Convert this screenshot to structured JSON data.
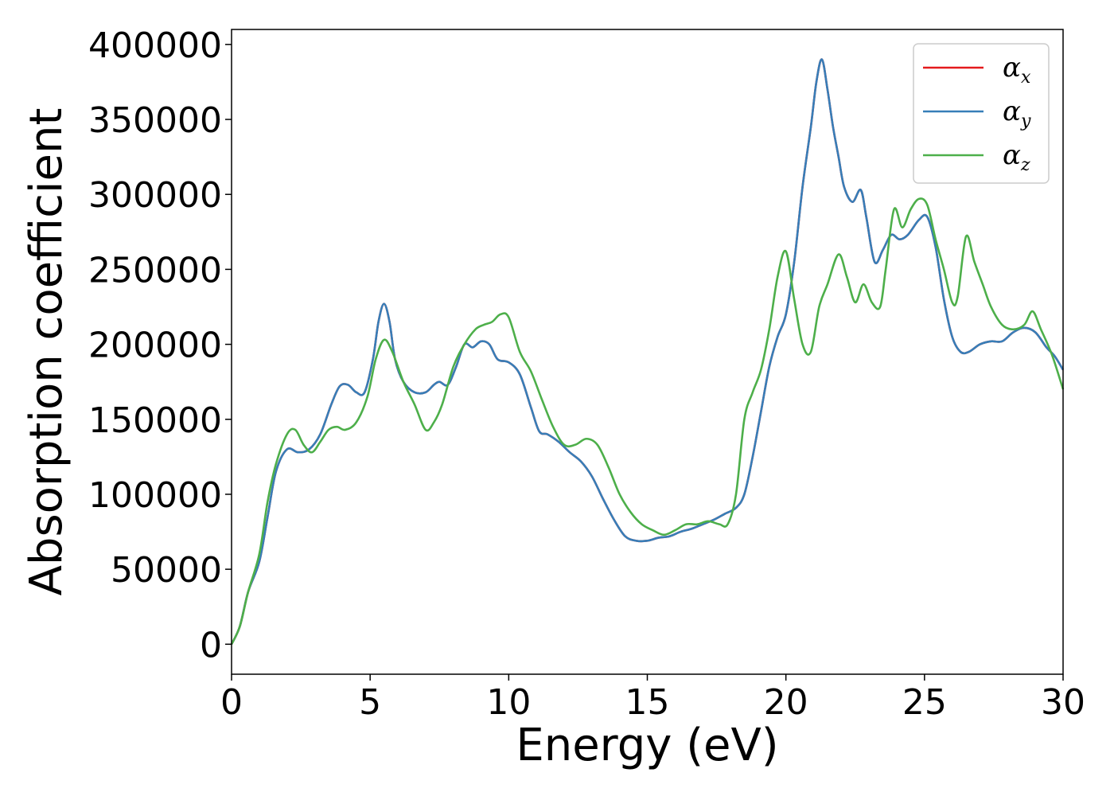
{
  "chart_data": {
    "type": "line",
    "title": "",
    "xlabel": "Energy (eV)",
    "ylabel": "Absorption coefficient",
    "xlim": [
      0,
      30
    ],
    "ylim": [
      -20000,
      410000
    ],
    "xticks": [
      0,
      5,
      10,
      15,
      20,
      25,
      30
    ],
    "yticks": [
      0,
      50000,
      100000,
      150000,
      200000,
      250000,
      300000,
      350000,
      400000
    ],
    "grid": false,
    "legend_position": "top-right",
    "series": [
      {
        "name": "α_x",
        "label_main": "α",
        "label_sub": "x",
        "color": "#e41a1c",
        "x": [
          0,
          0.3,
          0.6,
          1.0,
          1.3,
          1.6,
          2.0,
          2.4,
          2.8,
          3.2,
          3.6,
          3.9,
          4.2,
          4.5,
          4.8,
          5.1,
          5.3,
          5.5,
          5.7,
          5.9,
          6.2,
          6.6,
          7.0,
          7.3,
          7.5,
          7.8,
          8.1,
          8.4,
          8.7,
          9.0,
          9.3,
          9.6,
          10.0,
          10.4,
          10.8,
          11.1,
          11.4,
          11.8,
          12.2,
          12.6,
          13.0,
          13.4,
          13.8,
          14.2,
          14.6,
          15.0,
          15.4,
          15.8,
          16.2,
          16.6,
          17.0,
          17.4,
          17.8,
          18.2,
          18.5,
          18.8,
          19.1,
          19.4,
          19.7,
          20.0,
          20.3,
          20.6,
          20.9,
          21.1,
          21.3,
          21.5,
          21.7,
          21.9,
          22.1,
          22.4,
          22.7,
          22.9,
          23.2,
          23.5,
          23.8,
          24.1,
          24.4,
          24.8,
          25.1,
          25.4,
          25.7,
          26.0,
          26.3,
          26.6,
          27.0,
          27.4,
          27.8,
          28.2,
          28.6,
          29.0,
          29.4,
          29.7,
          30.0
        ],
        "values": [
          0,
          12000,
          35000,
          55000,
          85000,
          115000,
          130000,
          128000,
          130000,
          140000,
          160000,
          172000,
          173000,
          168000,
          168000,
          190000,
          215000,
          227000,
          215000,
          190000,
          175000,
          168000,
          168000,
          173000,
          175000,
          173000,
          185000,
          200000,
          198000,
          202000,
          200000,
          190000,
          188000,
          180000,
          158000,
          142000,
          140000,
          135000,
          128000,
          122000,
          112000,
          97000,
          83000,
          72000,
          69000,
          69000,
          71000,
          72000,
          75000,
          77000,
          80000,
          83000,
          87000,
          91000,
          100000,
          125000,
          155000,
          185000,
          205000,
          220000,
          255000,
          305000,
          345000,
          375000,
          390000,
          370000,
          345000,
          325000,
          305000,
          295000,
          303000,
          285000,
          255000,
          263000,
          273000,
          270000,
          273000,
          283000,
          285000,
          265000,
          230000,
          205000,
          195000,
          195000,
          200000,
          202000,
          202000,
          208000,
          211000,
          208000,
          198000,
          192000,
          183000
        ]
      },
      {
        "name": "α_y",
        "label_main": "α",
        "label_sub": "y",
        "color": "#377eb8",
        "x": [
          0,
          0.3,
          0.6,
          1.0,
          1.3,
          1.6,
          2.0,
          2.4,
          2.8,
          3.2,
          3.6,
          3.9,
          4.2,
          4.5,
          4.8,
          5.1,
          5.3,
          5.5,
          5.7,
          5.9,
          6.2,
          6.6,
          7.0,
          7.3,
          7.5,
          7.8,
          8.1,
          8.4,
          8.7,
          9.0,
          9.3,
          9.6,
          10.0,
          10.4,
          10.8,
          11.1,
          11.4,
          11.8,
          12.2,
          12.6,
          13.0,
          13.4,
          13.8,
          14.2,
          14.6,
          15.0,
          15.4,
          15.8,
          16.2,
          16.6,
          17.0,
          17.4,
          17.8,
          18.2,
          18.5,
          18.8,
          19.1,
          19.4,
          19.7,
          20.0,
          20.3,
          20.6,
          20.9,
          21.1,
          21.3,
          21.5,
          21.7,
          21.9,
          22.1,
          22.4,
          22.7,
          22.9,
          23.2,
          23.5,
          23.8,
          24.1,
          24.4,
          24.8,
          25.1,
          25.4,
          25.7,
          26.0,
          26.3,
          26.6,
          27.0,
          27.4,
          27.8,
          28.2,
          28.6,
          29.0,
          29.4,
          29.7,
          30.0
        ],
        "values": [
          0,
          12000,
          35000,
          55000,
          85000,
          115000,
          130000,
          128000,
          130000,
          140000,
          160000,
          172000,
          173000,
          168000,
          168000,
          190000,
          215000,
          227000,
          215000,
          190000,
          175000,
          168000,
          168000,
          173000,
          175000,
          173000,
          185000,
          200000,
          198000,
          202000,
          200000,
          190000,
          188000,
          180000,
          158000,
          142000,
          140000,
          135000,
          128000,
          122000,
          112000,
          97000,
          83000,
          72000,
          69000,
          69000,
          71000,
          72000,
          75000,
          77000,
          80000,
          83000,
          87000,
          91000,
          100000,
          125000,
          155000,
          185000,
          205000,
          220000,
          255000,
          305000,
          345000,
          375000,
          390000,
          370000,
          345000,
          325000,
          305000,
          295000,
          303000,
          285000,
          255000,
          263000,
          273000,
          270000,
          273000,
          283000,
          285000,
          265000,
          230000,
          205000,
          195000,
          195000,
          200000,
          202000,
          202000,
          208000,
          211000,
          208000,
          198000,
          192000,
          183000
        ]
      },
      {
        "name": "α_z",
        "label_main": "α",
        "label_sub": "z",
        "color": "#4daf4a",
        "x": [
          0,
          0.3,
          0.6,
          1.0,
          1.3,
          1.6,
          2.0,
          2.3,
          2.6,
          2.9,
          3.2,
          3.5,
          3.8,
          4.1,
          4.5,
          4.9,
          5.2,
          5.5,
          5.8,
          6.2,
          6.6,
          7.0,
          7.3,
          7.6,
          8.0,
          8.4,
          8.8,
          9.1,
          9.4,
          9.7,
          10.0,
          10.4,
          10.8,
          11.2,
          11.6,
          12.0,
          12.4,
          12.8,
          13.2,
          13.6,
          14.0,
          14.4,
          14.8,
          15.2,
          15.6,
          16.0,
          16.4,
          16.8,
          17.2,
          17.6,
          17.9,
          18.2,
          18.5,
          18.8,
          19.1,
          19.4,
          19.7,
          20.0,
          20.3,
          20.6,
          20.9,
          21.2,
          21.5,
          21.9,
          22.2,
          22.5,
          22.8,
          23.1,
          23.4,
          23.6,
          23.9,
          24.2,
          24.5,
          24.8,
          25.1,
          25.4,
          25.7,
          26.0,
          26.2,
          26.5,
          26.8,
          27.1,
          27.4,
          27.8,
          28.2,
          28.6,
          28.9,
          29.2,
          29.6,
          30.0
        ],
        "values": [
          0,
          12000,
          35000,
          60000,
          95000,
          120000,
          140000,
          143000,
          133000,
          128000,
          135000,
          143000,
          145000,
          143000,
          148000,
          165000,
          190000,
          203000,
          195000,
          175000,
          160000,
          143000,
          148000,
          160000,
          185000,
          200000,
          210000,
          213000,
          215000,
          220000,
          218000,
          195000,
          182000,
          163000,
          145000,
          133000,
          133000,
          137000,
          133000,
          118000,
          100000,
          88000,
          80000,
          76000,
          73000,
          76000,
          80000,
          80000,
          82000,
          80000,
          80000,
          100000,
          150000,
          168000,
          183000,
          210000,
          245000,
          262000,
          230000,
          200000,
          195000,
          225000,
          240000,
          260000,
          245000,
          228000,
          240000,
          228000,
          225000,
          250000,
          290000,
          278000,
          290000,
          297000,
          293000,
          270000,
          250000,
          228000,
          232000,
          272000,
          255000,
          240000,
          225000,
          213000,
          210000,
          213000,
          222000,
          210000,
          193000,
          170000
        ]
      }
    ]
  }
}
